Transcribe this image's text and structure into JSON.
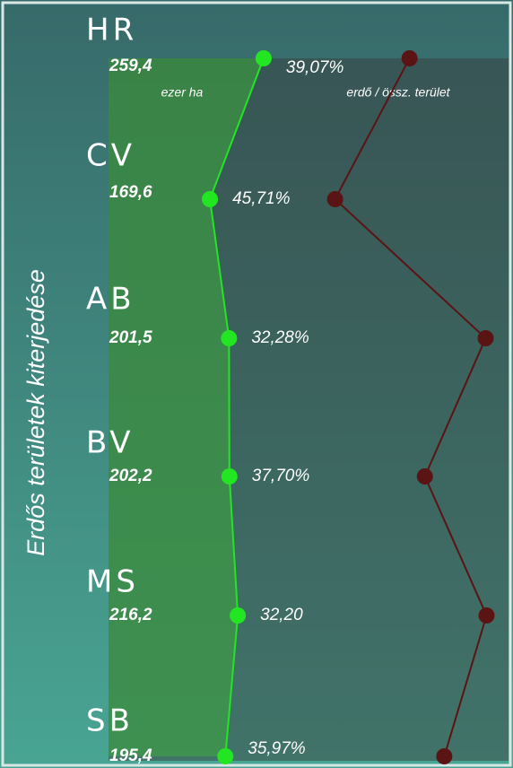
{
  "chart_data": {
    "type": "dot-line",
    "title": "Erdős területek kiterjedése",
    "categories": [
      "HR",
      "CV",
      "AB",
      "BV",
      "MS",
      "SB"
    ],
    "series": [
      {
        "name": "ezer ha",
        "color": "#22e622",
        "values": [
          259.4,
          169.6,
          201.5,
          202.2,
          216.2,
          195.4
        ],
        "value_labels": [
          "259,4",
          "169,6",
          "201,5",
          "202,2",
          "216,2",
          "195,4"
        ],
        "xlim": [
          0,
          300
        ]
      },
      {
        "name": "erdő / össz. terület",
        "color": "#5a1414",
        "values": [
          39.07,
          45.71,
          32.28,
          37.7,
          32.2,
          35.97
        ],
        "value_labels": [
          "39,07%",
          "45,71%",
          "32,28%",
          "37,70%",
          "32,20",
          "35,97%"
        ],
        "xlim": [
          50,
          30
        ]
      }
    ]
  }
}
